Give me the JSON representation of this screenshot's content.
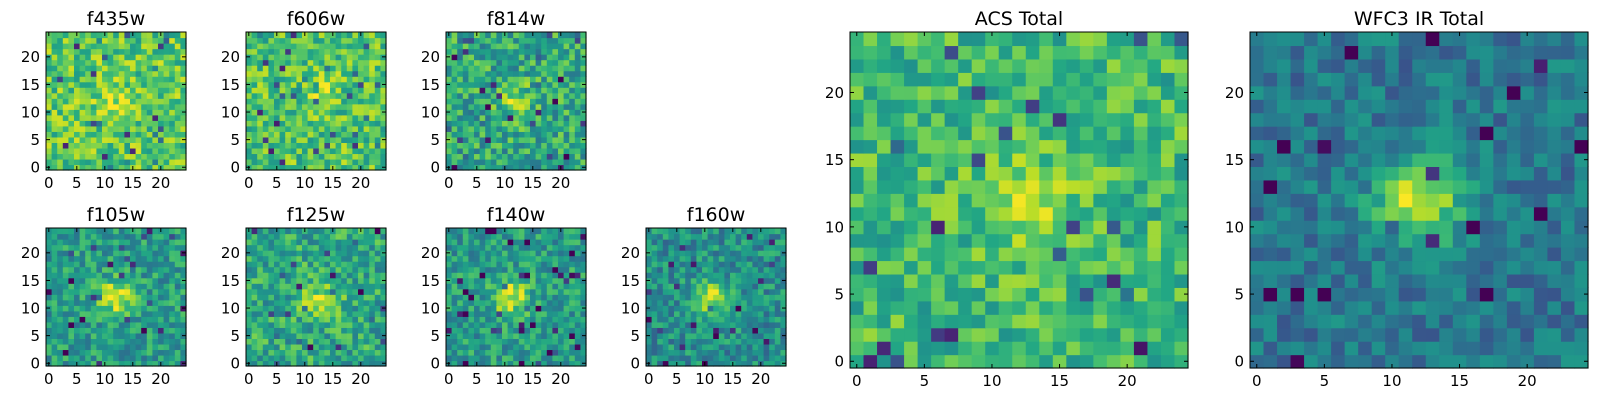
{
  "chart_data": {
    "type": "heatmap",
    "colormap": "viridis",
    "panels": [
      {
        "id": "f435w",
        "title": "f435w",
        "size": 25,
        "xlim": [
          0,
          24
        ],
        "ylim": [
          0,
          24
        ],
        "xticks": [
          0,
          5,
          10,
          15,
          20
        ],
        "yticks": [
          0,
          5,
          10,
          15,
          20
        ],
        "peak": [
          12,
          12
        ],
        "blob": 0.15,
        "base": 0.74,
        "noise": 0.2,
        "seed": 11
      },
      {
        "id": "f606w",
        "title": "f606w",
        "size": 25,
        "xlim": [
          0,
          24
        ],
        "ylim": [
          0,
          24
        ],
        "xticks": [
          0,
          5,
          10,
          15,
          20
        ],
        "yticks": [
          0,
          5,
          10,
          15,
          20
        ],
        "peak": [
          13,
          14
        ],
        "blob": 0.12,
        "base": 0.72,
        "noise": 0.2,
        "seed": 23
      },
      {
        "id": "f814w",
        "title": "f814w",
        "size": 25,
        "xlim": [
          0,
          24
        ],
        "ylim": [
          0,
          24
        ],
        "xticks": [
          0,
          5,
          10,
          15,
          20
        ],
        "yticks": [
          0,
          5,
          10,
          15,
          20
        ],
        "peak": [
          12,
          12
        ],
        "blob": 0.25,
        "base": 0.6,
        "noise": 0.22,
        "seed": 37
      },
      {
        "id": "f105w",
        "title": "f105w",
        "size": 25,
        "xlim": [
          0,
          24
        ],
        "ylim": [
          0,
          24
        ],
        "xticks": [
          0,
          5,
          10,
          15,
          20
        ],
        "yticks": [
          0,
          5,
          10,
          15,
          20
        ],
        "peak": [
          12,
          12
        ],
        "blob": 0.4,
        "base": 0.55,
        "noise": 0.18,
        "seed": 41
      },
      {
        "id": "f125w",
        "title": "f125w",
        "size": 25,
        "xlim": [
          0,
          24
        ],
        "ylim": [
          0,
          24
        ],
        "xticks": [
          0,
          5,
          10,
          15,
          20
        ],
        "yticks": [
          0,
          5,
          10,
          15,
          20
        ],
        "peak": [
          13,
          11
        ],
        "blob": 0.35,
        "base": 0.6,
        "noise": 0.2,
        "seed": 53
      },
      {
        "id": "f140w",
        "title": "f140w",
        "size": 25,
        "xlim": [
          0,
          24
        ],
        "ylim": [
          0,
          24
        ],
        "xticks": [
          0,
          5,
          10,
          15,
          20
        ],
        "yticks": [
          0,
          5,
          10,
          15,
          20
        ],
        "peak": [
          11,
          12
        ],
        "blob": 0.4,
        "base": 0.55,
        "noise": 0.18,
        "seed": 67
      },
      {
        "id": "f160w",
        "title": "f160w",
        "size": 25,
        "xlim": [
          0,
          24
        ],
        "ylim": [
          0,
          24
        ],
        "xticks": [
          0,
          5,
          10,
          15,
          20
        ],
        "yticks": [
          0,
          5,
          10,
          15,
          20
        ],
        "peak": [
          11,
          12
        ],
        "blob": 0.42,
        "base": 0.5,
        "noise": 0.18,
        "seed": 79
      },
      {
        "id": "acs",
        "title": "ACS Total",
        "size": 25,
        "xlim": [
          0,
          24
        ],
        "ylim": [
          0,
          24
        ],
        "xticks": [
          0,
          5,
          10,
          15,
          20
        ],
        "yticks": [
          0,
          5,
          10,
          15,
          20
        ],
        "peak": [
          13,
          12
        ],
        "blob": 0.22,
        "base": 0.68,
        "noise": 0.18,
        "seed": 91
      },
      {
        "id": "wfc3",
        "title": "WFC3 IR Total",
        "size": 25,
        "xlim": [
          0,
          24
        ],
        "ylim": [
          0,
          24
        ],
        "xticks": [
          0,
          5,
          10,
          15,
          20
        ],
        "yticks": [
          0,
          5,
          10,
          15,
          20
        ],
        "peak": [
          12,
          12
        ],
        "blob": 0.55,
        "base": 0.4,
        "noise": 0.14,
        "seed": 103
      }
    ]
  }
}
